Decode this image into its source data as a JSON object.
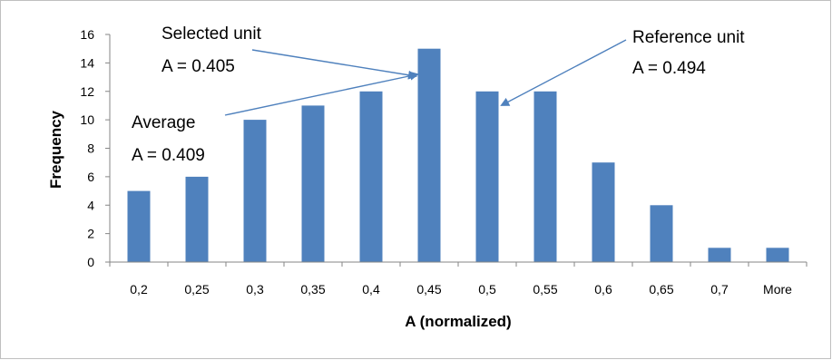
{
  "chart_data": {
    "type": "bar",
    "title": "",
    "xlabel": "A (normalized)",
    "ylabel": "Frequency",
    "categories": [
      "0,2",
      "0,25",
      "0,3",
      "0,35",
      "0,4",
      "0,45",
      "0,5",
      "0,55",
      "0,6",
      "0,65",
      "0,7",
      "More"
    ],
    "values": [
      5,
      6,
      10,
      11,
      12,
      15,
      12,
      12,
      7,
      4,
      1,
      1
    ],
    "ylim": [
      0,
      16
    ],
    "yticks": [
      0,
      2,
      4,
      6,
      8,
      10,
      12,
      14,
      16
    ],
    "grid": false,
    "legend": "none",
    "colors": {
      "bar": "#4F81BD",
      "arrow": "#4F81BD",
      "axis": "#868686",
      "border": "#BFBFBF"
    },
    "annotations": [
      {
        "id": "selected",
        "line1": "Selected unit",
        "line2": "A = 0.405"
      },
      {
        "id": "average",
        "line1": "Average",
        "line2": "A = 0.409"
      },
      {
        "id": "reference",
        "line1": "Reference unit",
        "line2": "A = 0.494"
      }
    ]
  }
}
